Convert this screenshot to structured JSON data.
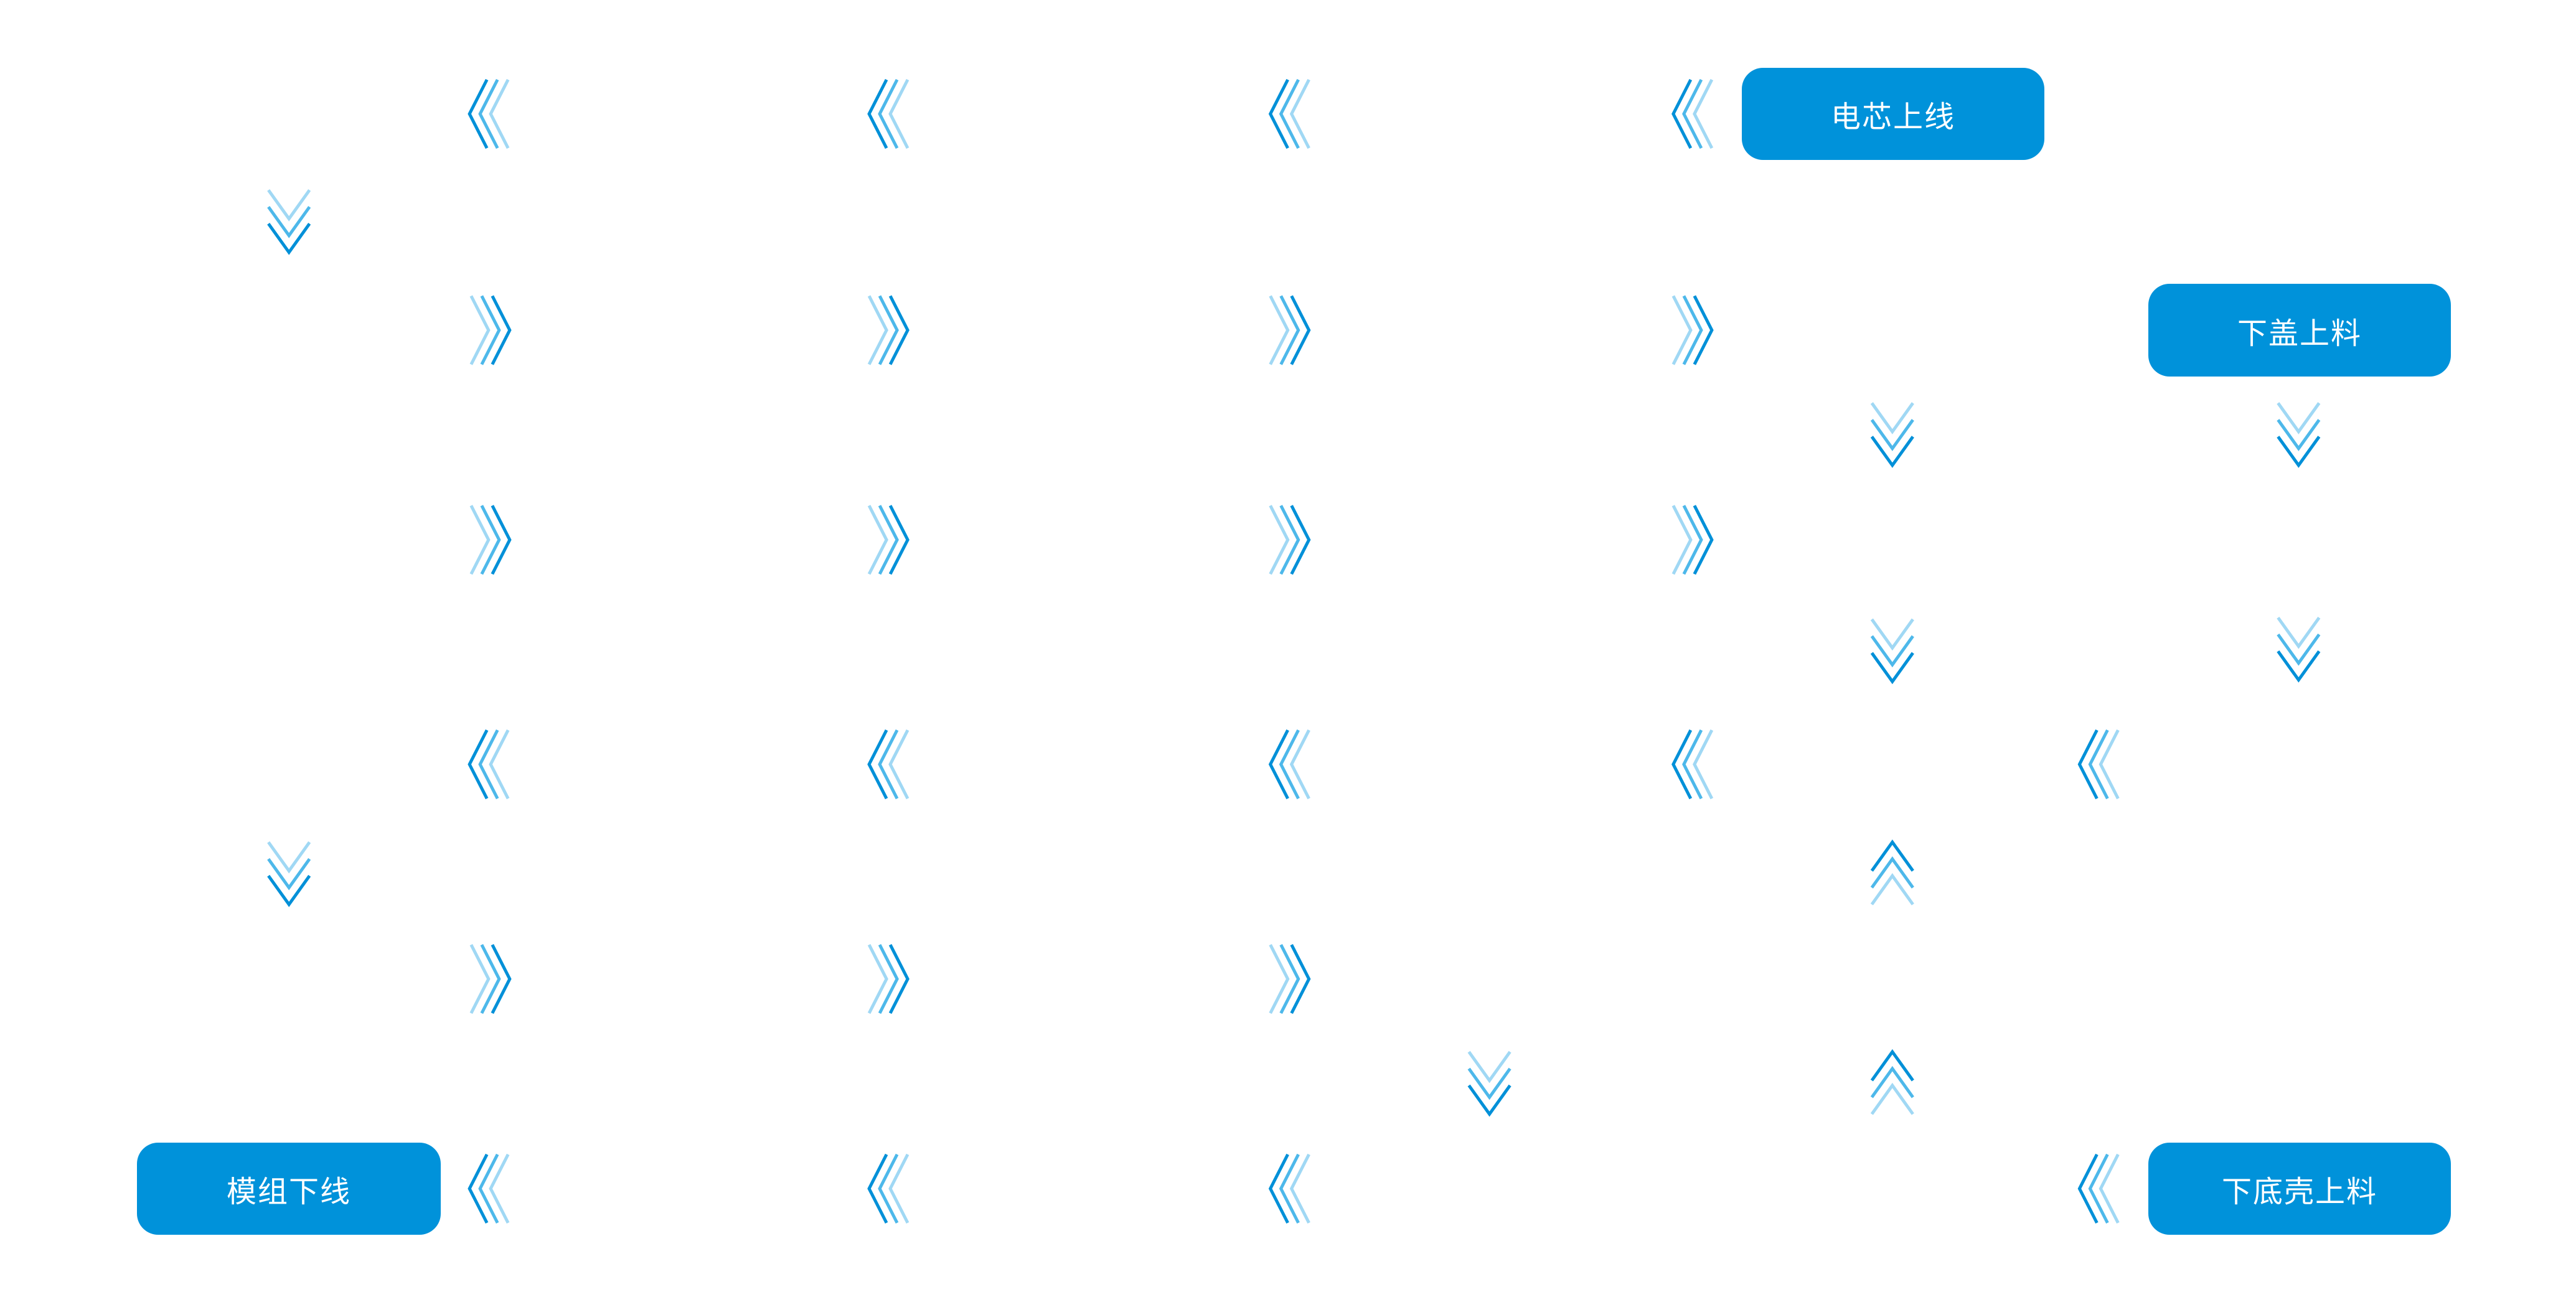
{
  "stations": {
    "cell_loading": "电芯上线",
    "top_cover_loading": "下盖上料",
    "module_unloading": "模组下线",
    "bottom_shell_loading": "下底壳上料"
  },
  "colors": {
    "station_fill": "#0092da",
    "station_text": "#ffffff",
    "chevron_dark": "#0090d8",
    "chevron_mid": "#4db8ea",
    "chevron_light": "#a0d8f4"
  },
  "flow_icon": "triple-chevron-arrow"
}
